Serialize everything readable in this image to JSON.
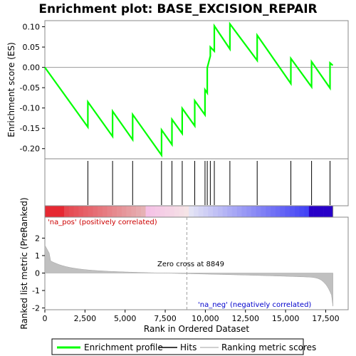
{
  "chart_data": {
    "type": "line",
    "title": "Enrichment plot: BASE_EXCISION_REPAIR",
    "es_panel": {
      "ylabel": "Enrichment score (ES)",
      "yticks": [
        "0.10",
        "0.05",
        "0.00",
        "-0.05",
        "-0.10",
        "-0.15",
        "-0.20"
      ],
      "ylim": [
        -0.225,
        0.115
      ],
      "series": [
        {
          "name": "Enrichment profile",
          "color": "#00ff00",
          "x": [
            0,
            2680,
            2680,
            4220,
            4220,
            5470,
            5470,
            7270,
            7270,
            7920,
            7920,
            8560,
            8560,
            9340,
            9340,
            9980,
            9980,
            10120,
            10120,
            10310,
            10310,
            10560,
            10560,
            11530,
            11530,
            13230,
            13230,
            15330,
            15330,
            16620,
            16620,
            17770,
            17770,
            17940
          ],
          "y": [
            0.0,
            -0.147,
            -0.085,
            -0.17,
            -0.108,
            -0.178,
            -0.116,
            -0.216,
            -0.154,
            -0.19,
            -0.128,
            -0.163,
            -0.101,
            -0.144,
            -0.082,
            -0.117,
            -0.055,
            -0.063,
            -0.001,
            0.028,
            0.05,
            0.04,
            0.102,
            0.045,
            0.107,
            0.017,
            0.079,
            -0.04,
            0.022,
            -0.048,
            0.014,
            -0.051,
            0.011,
            0.005
          ]
        }
      ]
    },
    "hits": [
      2680,
      4220,
      5470,
      7270,
      7920,
      8560,
      9340,
      9980,
      10120,
      10310,
      10560,
      11530,
      13230,
      15330,
      16620,
      17770
    ],
    "metric_panel": {
      "ylabel": "Ranked list metric (PreRanked)",
      "yticks": [
        "2",
        "1",
        "0",
        "-1",
        "-2"
      ],
      "ylim": [
        -2.1,
        3.2
      ],
      "xlabel": "Rank in Ordered Dataset",
      "xticks": [
        "0",
        "2,500",
        "5,000",
        "7,500",
        "10,000",
        "12,500",
        "15,000",
        "17,500"
      ],
      "xlim": [
        0,
        18900
      ],
      "n_genes": 17950,
      "zero_cross": 8849,
      "zero_cross_label": "Zero cross at 8849",
      "pos_label": "'na_pos' (positively correlated)",
      "neg_label": "'na_neg' (negatively correlated)",
      "pos_color": "#cc0000",
      "neg_color": "#0000cc"
    },
    "legend": {
      "placement": "bottom",
      "items": [
        {
          "label": "Enrichment profile",
          "color": "#00ff00"
        },
        {
          "label": "Hits",
          "color": "#000000"
        },
        {
          "label": "Ranking metric scores",
          "color": "#c0c0c0"
        }
      ]
    }
  }
}
